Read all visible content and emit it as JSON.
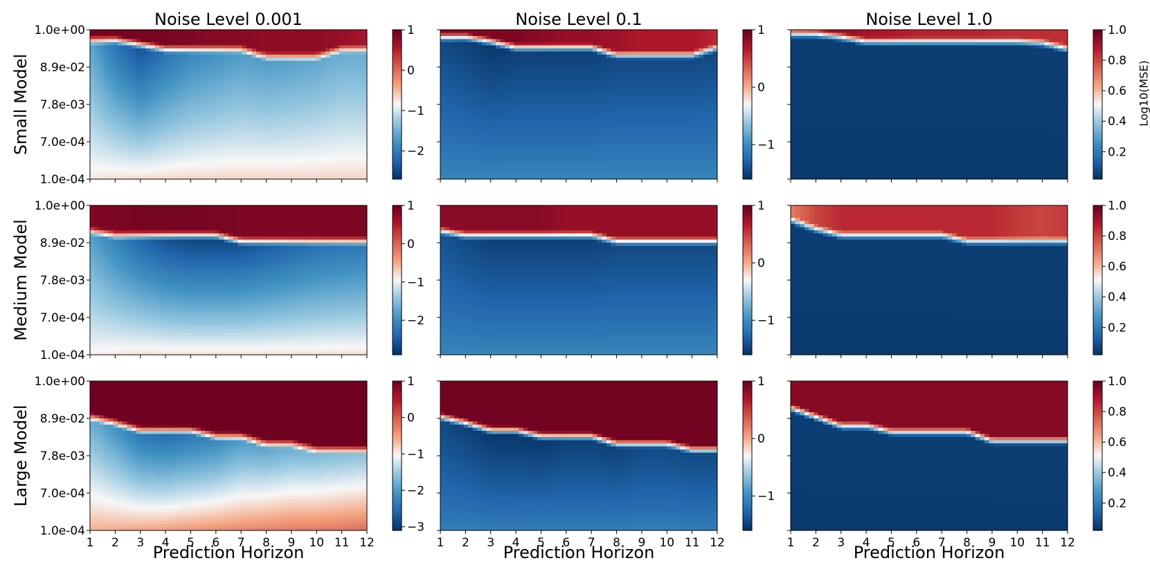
{
  "chart_data": {
    "type": "heatmap",
    "layout": "3 rows x 3 columns of heatmaps, each with its own colorbar",
    "column_titles": [
      "Noise Level 0.001",
      "Noise Level 0.1",
      "Noise Level 1.0"
    ],
    "row_labels": [
      "Small Model",
      "Medium Model",
      "Large Model"
    ],
    "xlabel": "Prediction Horizon",
    "x_ticks": [
      "1",
      "2",
      "3",
      "4",
      "5",
      "6",
      "7",
      "8",
      "9",
      "10",
      "11",
      "12"
    ],
    "y_ticks": [
      "1.0e+00",
      "8.9e-02",
      "7.8e-03",
      "7.0e-04",
      "1.0e-04"
    ],
    "y_scale": "log",
    "colorbar_label": "Log10(MSE)",
    "colormap": "RdBu_r",
    "colormap_stops": [
      "#053061",
      "#2166ac",
      "#4393c3",
      "#92c5de",
      "#f7f7f7",
      "#f4a582",
      "#d6604d",
      "#b2182b",
      "#67001f"
    ],
    "panels": [
      {
        "row": "Small Model",
        "noise": "Noise Level 0.001",
        "colorbar": {
          "range": [
            -2.7,
            1.0
          ],
          "ticks": [
            -2,
            -1,
            0,
            1
          ],
          "tick_labels": [
            "−2",
            "−1",
            "0",
            "1"
          ]
        },
        "boundary_y": [
          0.93,
          0.93,
          0.9,
          0.87,
          0.87,
          0.87,
          0.87,
          0.82,
          0.82,
          0.82,
          0.87,
          0.87
        ],
        "values_at_bottom": [
          -0.75,
          -0.7,
          -0.68,
          -0.66,
          -0.65,
          -0.65,
          -0.65,
          -0.65,
          -0.65,
          -0.65,
          -0.65,
          -0.65
        ],
        "values_below_boundary": [
          -1.6,
          -2.1,
          -2.4,
          -2.1,
          -1.9,
          -1.8,
          -1.7,
          -1.7,
          -1.65,
          -1.6,
          -1.55,
          -1.55
        ],
        "values_above_boundary": [
          0.9,
          0.9,
          0.9,
          0.9,
          0.85,
          0.8,
          0.8,
          0.75,
          0.75,
          0.75,
          0.7,
          0.6
        ]
      },
      {
        "row": "Small Model",
        "noise": "Noise Level 0.1",
        "colorbar": {
          "range": [
            -1.6,
            1.0
          ],
          "ticks": [
            -1,
            0,
            1
          ],
          "tick_labels": [
            "−1",
            "0",
            "1"
          ]
        },
        "boundary_y": [
          0.95,
          0.95,
          0.92,
          0.88,
          0.88,
          0.88,
          0.88,
          0.83,
          0.83,
          0.83,
          0.83,
          0.88
        ],
        "values_at_bottom": [
          -1.05,
          -1.05,
          -1.05,
          -1.05,
          -1.05,
          -1.05,
          -1.05,
          -1.05,
          -1.05,
          -1.05,
          -1.05,
          -1.05
        ],
        "values_below_boundary": [
          -1.45,
          -1.5,
          -1.55,
          -1.5,
          -1.5,
          -1.5,
          -1.5,
          -1.45,
          -1.45,
          -1.45,
          -1.45,
          -1.45
        ],
        "values_above_boundary": [
          0.9,
          0.9,
          0.9,
          0.9,
          0.85,
          0.8,
          0.8,
          0.75,
          0.7,
          0.7,
          0.7,
          0.6
        ]
      },
      {
        "row": "Small Model",
        "noise": "Noise Level 1.0",
        "colorbar": {
          "range": [
            0.02,
            1.0
          ],
          "ticks": [
            0.2,
            0.4,
            0.6,
            0.8,
            1.0
          ],
          "tick_labels": [
            "0.2",
            "0.4",
            "0.6",
            "0.8",
            "1.0"
          ]
        },
        "boundary_y": [
          0.97,
          0.97,
          0.95,
          0.92,
          0.92,
          0.92,
          0.92,
          0.92,
          0.92,
          0.92,
          0.91,
          0.87
        ],
        "values_at_bottom": [
          0.04,
          0.04,
          0.04,
          0.04,
          0.04,
          0.04,
          0.04,
          0.04,
          0.04,
          0.04,
          0.04,
          0.04
        ],
        "values_below_boundary": [
          0.05,
          0.05,
          0.05,
          0.05,
          0.05,
          0.05,
          0.05,
          0.05,
          0.05,
          0.05,
          0.05,
          0.05
        ],
        "values_above_boundary": [
          0.85,
          0.9,
          0.92,
          0.9,
          0.88,
          0.86,
          0.86,
          0.86,
          0.85,
          0.84,
          0.84,
          0.84
        ]
      },
      {
        "row": "Medium Model",
        "noise": "Noise Level 0.001",
        "colorbar": {
          "range": [
            -2.9,
            1.0
          ],
          "ticks": [
            -2,
            -1,
            0,
            1
          ],
          "tick_labels": [
            "−2",
            "−1",
            "0",
            "1"
          ]
        },
        "boundary_y": [
          0.83,
          0.8,
          0.8,
          0.8,
          0.8,
          0.8,
          0.76,
          0.76,
          0.76,
          0.76,
          0.76,
          0.76
        ],
        "values_at_bottom": [
          -0.9,
          -0.85,
          -0.8,
          -0.8,
          -0.8,
          -0.8,
          -0.8,
          -0.8,
          -0.8,
          -0.8,
          -0.8,
          -0.8
        ],
        "values_below_boundary": [
          -1.8,
          -2.1,
          -2.4,
          -2.6,
          -2.7,
          -2.7,
          -2.6,
          -2.5,
          -2.4,
          -2.3,
          -2.25,
          -2.2
        ],
        "values_above_boundary": [
          0.85,
          0.85,
          0.9,
          0.9,
          0.9,
          0.88,
          0.85,
          0.85,
          0.85,
          0.85,
          0.85,
          0.85
        ]
      },
      {
        "row": "Medium Model",
        "noise": "Noise Level 0.1",
        "colorbar": {
          "range": [
            -1.6,
            1.0
          ],
          "ticks": [
            -1,
            0,
            1
          ],
          "tick_labels": [
            "−1",
            "0",
            "1"
          ]
        },
        "boundary_y": [
          0.83,
          0.8,
          0.8,
          0.8,
          0.8,
          0.8,
          0.8,
          0.76,
          0.76,
          0.76,
          0.76,
          0.76
        ],
        "values_at_bottom": [
          -1.05,
          -1.05,
          -1.05,
          -1.05,
          -1.05,
          -1.05,
          -1.05,
          -1.05,
          -1.05,
          -1.05,
          -1.05,
          -1.05
        ],
        "values_below_boundary": [
          -1.4,
          -1.45,
          -1.5,
          -1.5,
          -1.5,
          -1.5,
          -1.5,
          -1.45,
          -1.45,
          -1.45,
          -1.45,
          -1.45
        ],
        "values_above_boundary": [
          0.85,
          0.85,
          0.85,
          0.85,
          0.85,
          0.8,
          0.8,
          0.8,
          0.8,
          0.8,
          0.8,
          0.8
        ]
      },
      {
        "row": "Medium Model",
        "noise": "Noise Level 1.0",
        "colorbar": {
          "range": [
            0.02,
            1.0
          ],
          "ticks": [
            0.2,
            0.4,
            0.6,
            0.8,
            1.0
          ],
          "tick_labels": [
            "0.2",
            "0.4",
            "0.6",
            "0.8",
            "1.0"
          ]
        },
        "boundary_y": [
          0.9,
          0.84,
          0.8,
          0.8,
          0.8,
          0.8,
          0.8,
          0.76,
          0.76,
          0.76,
          0.76,
          0.76
        ],
        "values_at_bottom": [
          0.04,
          0.04,
          0.04,
          0.04,
          0.04,
          0.04,
          0.04,
          0.04,
          0.04,
          0.04,
          0.04,
          0.04
        ],
        "values_below_boundary": [
          0.05,
          0.05,
          0.05,
          0.05,
          0.05,
          0.05,
          0.05,
          0.05,
          0.05,
          0.05,
          0.05,
          0.05
        ],
        "values_above_boundary": [
          0.7,
          0.8,
          0.85,
          0.85,
          0.85,
          0.85,
          0.85,
          0.85,
          0.85,
          0.82,
          0.8,
          0.82
        ]
      },
      {
        "row": "Large Model",
        "noise": "Noise Level 0.001",
        "colorbar": {
          "range": [
            -3.1,
            1.0
          ],
          "ticks": [
            -3,
            -2,
            -1,
            0,
            1
          ],
          "tick_labels": [
            "−3",
            "−2",
            "−1",
            "0",
            "1"
          ]
        },
        "boundary_y": [
          0.76,
          0.72,
          0.67,
          0.67,
          0.67,
          0.63,
          0.63,
          0.58,
          0.58,
          0.54,
          0.54,
          0.54
        ],
        "values_at_bottom": [
          -0.6,
          -0.55,
          -0.5,
          -0.45,
          -0.4,
          -0.35,
          -0.3,
          -0.25,
          -0.2,
          -0.2,
          -0.15,
          -0.1
        ],
        "values_below_boundary": [
          -1.8,
          -2.1,
          -2.4,
          -2.5,
          -2.4,
          -2.2,
          -2.0,
          -1.9,
          -1.8,
          -1.7,
          -1.65,
          -1.6
        ],
        "values_above_boundary": [
          0.95,
          0.95,
          0.95,
          0.95,
          0.95,
          0.95,
          0.95,
          0.95,
          0.95,
          0.95,
          0.95,
          0.95
        ]
      },
      {
        "row": "Large Model",
        "noise": "Noise Level 0.1",
        "colorbar": {
          "range": [
            -1.6,
            1.0
          ],
          "ticks": [
            -1,
            0,
            1
          ],
          "tick_labels": [
            "−1",
            "0",
            "1"
          ]
        },
        "boundary_y": [
          0.76,
          0.72,
          0.67,
          0.67,
          0.63,
          0.63,
          0.63,
          0.58,
          0.58,
          0.58,
          0.54,
          0.54
        ],
        "values_at_bottom": [
          -1.1,
          -1.1,
          -1.1,
          -1.1,
          -1.1,
          -1.1,
          -1.1,
          -1.1,
          -1.1,
          -1.1,
          -1.1,
          -1.1
        ],
        "values_below_boundary": [
          -1.45,
          -1.5,
          -1.55,
          -1.55,
          -1.55,
          -1.5,
          -1.5,
          -1.5,
          -1.45,
          -1.45,
          -1.45,
          -1.45
        ],
        "values_above_boundary": [
          0.95,
          0.95,
          0.95,
          0.95,
          0.95,
          0.95,
          0.95,
          0.95,
          0.95,
          0.95,
          0.95,
          0.95
        ]
      },
      {
        "row": "Large Model",
        "noise": "Noise Level 1.0",
        "colorbar": {
          "range": [
            0.02,
            1.0
          ],
          "ticks": [
            0.2,
            0.4,
            0.6,
            0.8,
            1.0
          ],
          "tick_labels": [
            "0.2",
            "0.4",
            "0.6",
            "0.8",
            "1.0"
          ]
        },
        "boundary_y": [
          0.82,
          0.76,
          0.7,
          0.7,
          0.66,
          0.66,
          0.66,
          0.66,
          0.6,
          0.6,
          0.6,
          0.6
        ],
        "values_at_bottom": [
          0.04,
          0.04,
          0.04,
          0.04,
          0.04,
          0.04,
          0.04,
          0.04,
          0.04,
          0.04,
          0.04,
          0.04
        ],
        "values_below_boundary": [
          0.05,
          0.05,
          0.05,
          0.05,
          0.05,
          0.05,
          0.05,
          0.05,
          0.05,
          0.05,
          0.05,
          0.05
        ],
        "values_above_boundary": [
          0.95,
          0.95,
          0.95,
          0.95,
          0.95,
          0.95,
          0.95,
          0.95,
          0.95,
          0.95,
          0.95,
          0.95
        ]
      }
    ]
  }
}
